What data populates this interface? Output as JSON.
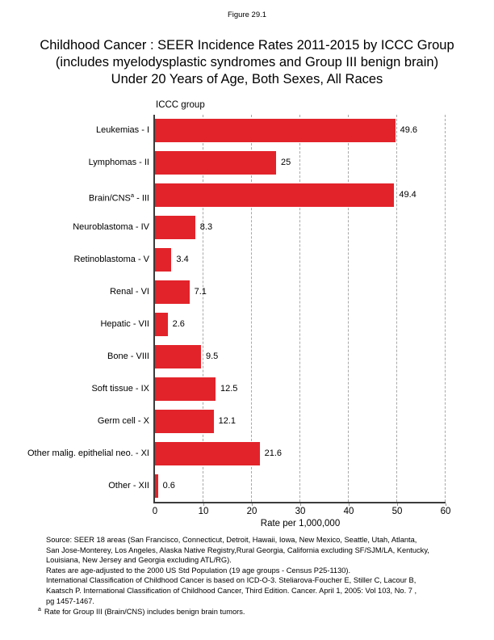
{
  "page": {
    "figure_label": "Figure 29.1",
    "title_lines": [
      "Childhood Cancer : SEER Incidence Rates 2011-2015 by ICCC Group",
      "(includes myelodysplastic syndromes and Group III benign brain)",
      "Under 20 Years of Age, Both Sexes, All Races"
    ]
  },
  "chart_data": {
    "type": "bar",
    "orientation": "horizontal",
    "group_axis_title": "ICCC group",
    "categories": [
      {
        "text": "Leukemias - I"
      },
      {
        "text": "Lymphomas - II"
      },
      {
        "text": "Brain/CNS",
        "sup": "a",
        "text_after": "- III"
      },
      {
        "text": "Neuroblastoma - IV"
      },
      {
        "text": "Retinoblastoma - V"
      },
      {
        "text": "Renal - VI"
      },
      {
        "text": "Hepatic - VII"
      },
      {
        "text": "Bone - VIII"
      },
      {
        "text": "Soft tissue - IX"
      },
      {
        "text": "Germ cell - X"
      },
      {
        "text": "Other malig. epithelial neo. - XI"
      },
      {
        "text": "Other - XII"
      }
    ],
    "values": [
      49.6,
      25,
      49.4,
      8.3,
      3.4,
      7.1,
      2.6,
      9.5,
      12.5,
      12.1,
      21.6,
      0.6
    ],
    "value_labels": [
      "49.6",
      "25",
      "49.4",
      "8.3",
      "3.4",
      "7.1",
      "2.6",
      "9.5",
      "12.5",
      "12.1",
      "21.6",
      "0.6"
    ],
    "xlabel": "Rate per 1,000,000",
    "xticks": [
      0,
      10,
      20,
      30,
      40,
      50,
      60
    ],
    "xlim": [
      0,
      60
    ],
    "grid": "vertical-dashed",
    "legend": "none"
  },
  "footer": {
    "source_lines": [
      "Source:  SEER 18 areas (San Francisco, Connecticut, Detroit, Hawaii, Iowa, New Mexico, Seattle, Utah, Atlanta,",
      "San Jose-Monterey, Los Angeles, Alaska Native Registry,Rural Georgia, California excluding SF/SJM/LA, Kentucky,",
      "Louisiana, New Jersey and Georgia excluding ATL/RG).",
      "Rates are age-adjusted to the 2000 US Std Population (19 age groups - Census P25-1130).",
      "International Classification of Childhood Cancer is based on ICD-O-3.  Steliarova-Foucher E, Stiller C, Lacour B,",
      "Kaatsch P. International Classification of Childhood Cancer, Third Edition.  Cancer. April 1, 2005: Vol 103, No. 7 ,",
      "pg 1457-1467."
    ],
    "footnote": {
      "marker": "a",
      "text": "Rate for Group III (Brain/CNS) includes benign brain tumors."
    }
  },
  "colors": {
    "bar": "#e2232a",
    "axis": "#3c3c3c",
    "grid": "#a8a8a8",
    "text": "#000000",
    "background": "#ffffff"
  }
}
